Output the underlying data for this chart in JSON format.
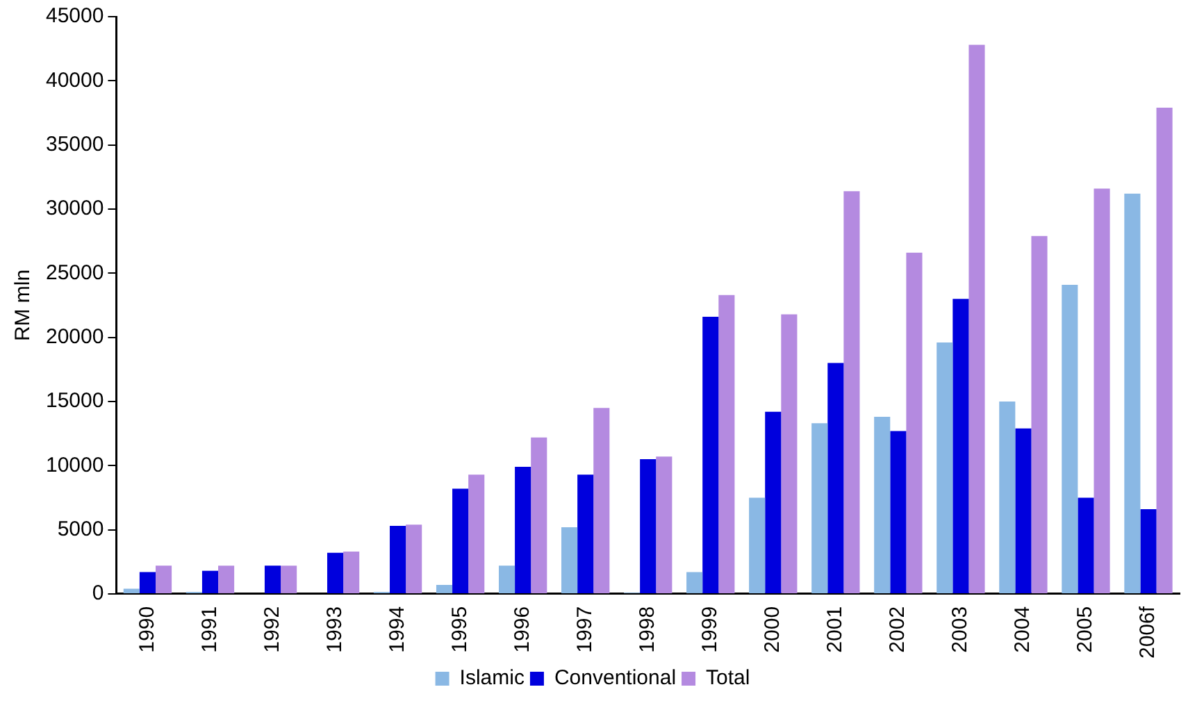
{
  "chart_data": {
    "type": "bar",
    "ylabel": "RM mln",
    "categories": [
      "1990",
      "1991",
      "1992",
      "1993",
      "1994",
      "1995",
      "1996",
      "1997",
      "1998",
      "1999",
      "2000",
      "2001",
      "2002",
      "2003",
      "2004",
      "2005",
      "2006f"
    ],
    "series": [
      {
        "name": "Islamic",
        "color": "#8ab8e4",
        "values": [
          400,
          150,
          0,
          0,
          150,
          700,
          2200,
          5200,
          100,
          1700,
          7500,
          13300,
          13800,
          19600,
          15000,
          24100,
          31200
        ]
      },
      {
        "name": "Conventional",
        "color": "#0000dd",
        "values": [
          1700,
          1800,
          2200,
          3200,
          5300,
          8200,
          9900,
          9300,
          10500,
          21600,
          14200,
          18000,
          12700,
          23000,
          12900,
          7500,
          6600
        ]
      },
      {
        "name": "Total",
        "color": "#b48ae0",
        "values": [
          2200,
          2200,
          2200,
          3300,
          5400,
          9300,
          12200,
          14500,
          10700,
          23300,
          21800,
          31400,
          26600,
          42800,
          27900,
          31600,
          37900
        ]
      }
    ],
    "ylim": [
      0,
      45000
    ],
    "yticks": [
      0,
      5000,
      10000,
      15000,
      20000,
      25000,
      30000,
      35000,
      40000,
      45000
    ],
    "grid": false,
    "legend": "bottom"
  }
}
